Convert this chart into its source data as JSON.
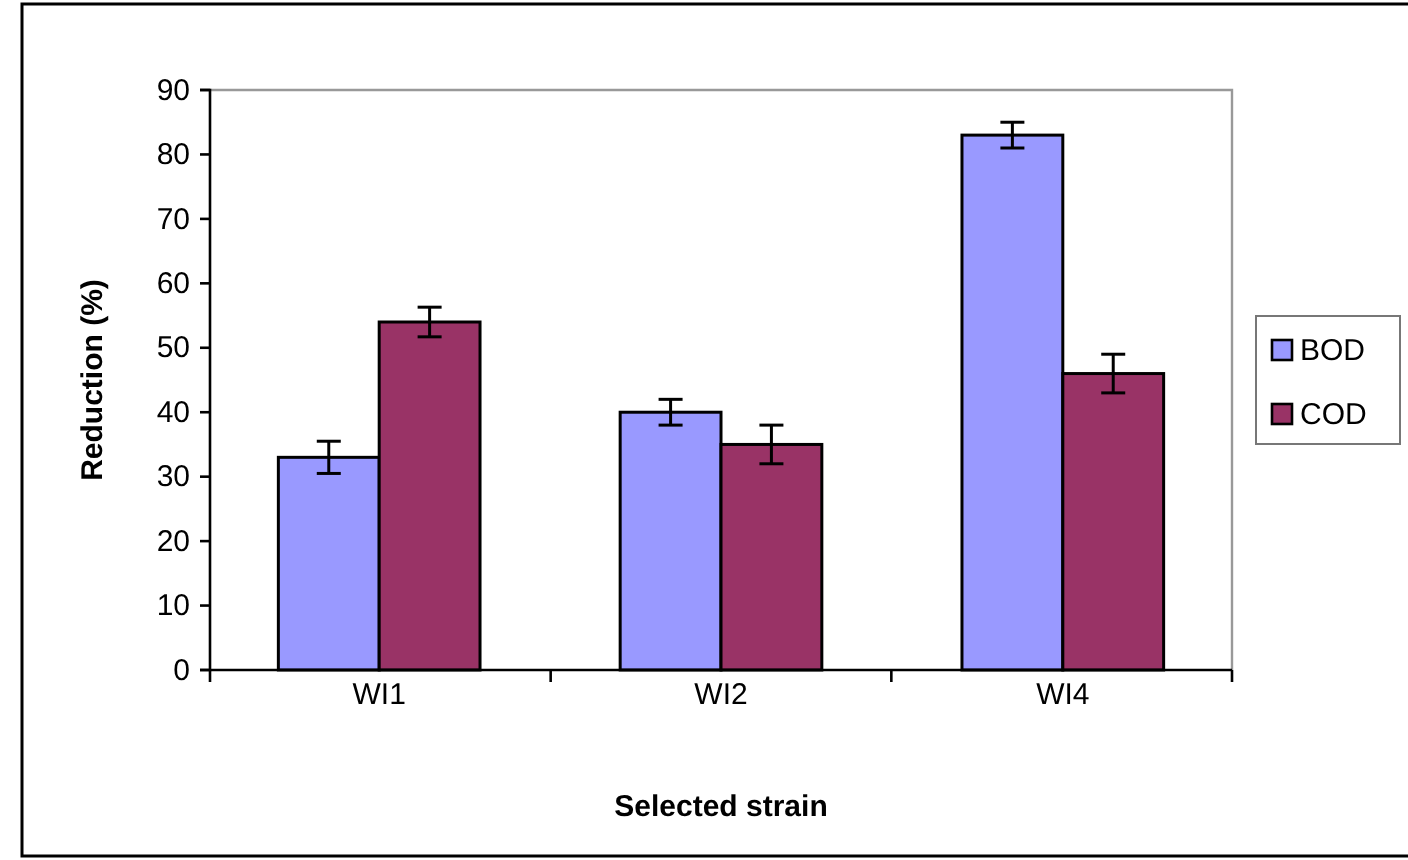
{
  "chart_data": {
    "type": "bar",
    "xlabel": "Selected strain",
    "ylabel": "Reduction (%)",
    "categories": [
      "WI1",
      "WI2",
      "WI4"
    ],
    "series": [
      {
        "name": "BOD",
        "color": "#9999ff",
        "values": [
          33,
          40,
          83
        ],
        "errors": [
          2.5,
          2,
          2
        ]
      },
      {
        "name": "COD",
        "color": "#993366",
        "values": [
          54,
          35,
          46
        ],
        "errors": [
          2.3,
          3,
          3
        ]
      }
    ],
    "ylim": [
      0,
      90
    ],
    "yticks": [
      0,
      10,
      20,
      30,
      40,
      50,
      60,
      70,
      80,
      90
    ],
    "legend": "right",
    "grid": false
  }
}
